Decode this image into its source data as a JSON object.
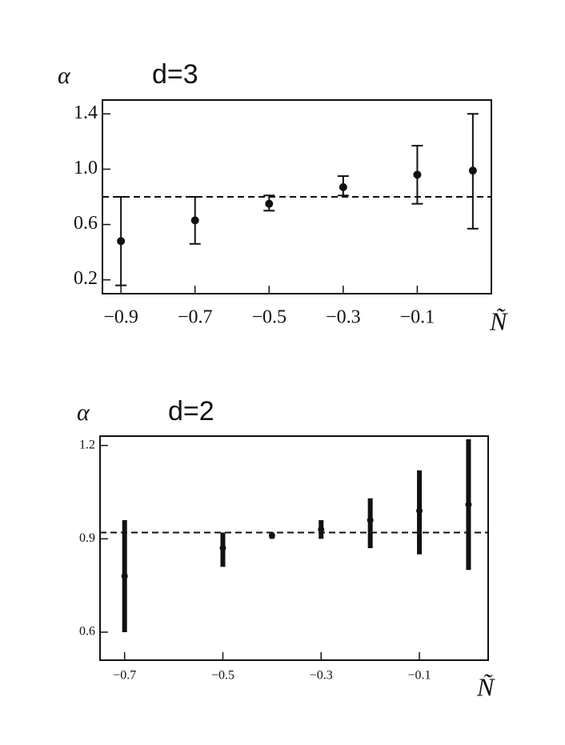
{
  "chart_data": [
    {
      "type": "scatter",
      "title": "d=3",
      "y_label": "α",
      "x_label": "Ñ",
      "x": [
        -0.9,
        -0.7,
        -0.5,
        -0.3,
        -0.1,
        0.05
      ],
      "values": [
        0.48,
        0.63,
        0.75,
        0.87,
        0.96,
        0.99
      ],
      "lower": [
        0.16,
        0.46,
        0.7,
        0.81,
        0.75,
        0.57
      ],
      "upper": [
        0.8,
        0.8,
        0.81,
        0.95,
        1.17,
        1.4
      ],
      "reference_line": 0.8,
      "color": "#111111",
      "xlim": [
        -0.95,
        0.1
      ],
      "ylim": [
        0.1,
        1.5
      ],
      "xticks": [
        {
          "value": -0.9,
          "label": "−0.9"
        },
        {
          "value": -0.7,
          "label": "−0.7"
        },
        {
          "value": -0.5,
          "label": "−0.5"
        },
        {
          "value": -0.3,
          "label": "−0.3"
        },
        {
          "value": -0.1,
          "label": "−0.1"
        }
      ],
      "yticks": [
        0.2,
        0.6,
        {
          "value": 1,
          "label": "1.0"
        },
        1.4
      ]
    },
    {
      "type": "scatter",
      "title": "d=2",
      "y_label": "α",
      "x_label": "Ñ",
      "x": [
        -0.7,
        -0.5,
        -0.4,
        -0.3,
        -0.2,
        -0.1,
        0
      ],
      "values": [
        0.78,
        0.87,
        0.91,
        0.93,
        0.96,
        0.99,
        1.01
      ],
      "lower": [
        0.6,
        0.81,
        0.9,
        0.9,
        0.87,
        0.85,
        0.8
      ],
      "upper": [
        0.96,
        0.92,
        0.92,
        0.96,
        1.03,
        1.12,
        1.22
      ],
      "reference_line": 0.92,
      "color": "#111111",
      "xlim": [
        -0.75,
        0.04
      ],
      "ylim": [
        0.51,
        1.23
      ],
      "xticks": [
        {
          "value": -0.7,
          "label": "−0.7"
        },
        {
          "value": -0.5,
          "label": "−0.5"
        },
        {
          "value": -0.3,
          "label": "−0.3"
        },
        {
          "value": -0.1,
          "label": "−0.1"
        }
      ],
      "yticks": [
        0.6,
        0.9,
        1.2
      ]
    }
  ]
}
